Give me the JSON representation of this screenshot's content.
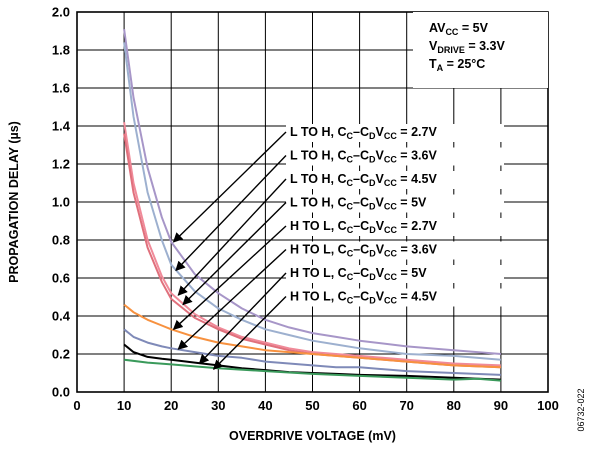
{
  "chart_data": {
    "type": "line",
    "xlabel": "OVERDRIVE VOLTAGE (mV)",
    "ylabel": "PROPAGATION DELAY (µs)",
    "xlim": [
      0,
      100
    ],
    "ylim": [
      0,
      2.0
    ],
    "xticks": [
      0,
      10,
      20,
      30,
      40,
      50,
      60,
      70,
      80,
      90,
      100
    ],
    "yticks": [
      0,
      0.2,
      0.4,
      0.6,
      0.8,
      1.0,
      1.2,
      1.4,
      1.6,
      1.8,
      2.0
    ],
    "grid": true,
    "conditions": [
      "AV_CC = 5V",
      "V_DRIVE = 3.3V",
      "T_A = 25°C"
    ],
    "series": [
      {
        "name": "L TO H, C_C–C_DV_CC = 2.7V",
        "color": "#a796c8",
        "x": [
          10,
          12,
          15,
          18,
          20,
          25,
          30,
          35,
          40,
          45,
          50,
          55,
          60,
          70,
          80,
          90
        ],
        "y": [
          1.91,
          1.55,
          1.18,
          0.92,
          0.79,
          0.62,
          0.52,
          0.44,
          0.38,
          0.34,
          0.31,
          0.29,
          0.27,
          0.24,
          0.22,
          0.2
        ]
      },
      {
        "name": "L TO H, C_C–C_DV_CC = 3.6V",
        "color": "#9db0cf",
        "x": [
          10,
          12,
          15,
          18,
          20,
          25,
          30,
          35,
          40,
          45,
          50,
          55,
          60,
          70,
          80,
          90
        ],
        "y": [
          1.84,
          1.45,
          1.05,
          0.8,
          0.67,
          0.53,
          0.44,
          0.38,
          0.33,
          0.3,
          0.27,
          0.25,
          0.23,
          0.2,
          0.19,
          0.17
        ]
      },
      {
        "name": "L TO H, C_C–C_DV_CC = 4.5V",
        "color": "#f08a99",
        "x": [
          10,
          12,
          15,
          18,
          20,
          25,
          30,
          35,
          40,
          45,
          50,
          55,
          60,
          70,
          80,
          90
        ],
        "y": [
          1.42,
          1.1,
          0.8,
          0.61,
          0.52,
          0.41,
          0.34,
          0.29,
          0.26,
          0.23,
          0.21,
          0.2,
          0.19,
          0.17,
          0.15,
          0.14
        ]
      },
      {
        "name": "L TO H, C_C–C_DV_CC = 5V",
        "color": "#e0707c",
        "x": [
          10,
          12,
          15,
          18,
          20,
          25,
          30,
          35,
          40,
          45,
          50,
          55,
          60,
          70,
          80,
          90
        ],
        "y": [
          1.36,
          1.05,
          0.76,
          0.58,
          0.49,
          0.39,
          0.33,
          0.28,
          0.25,
          0.22,
          0.2,
          0.19,
          0.18,
          0.16,
          0.14,
          0.13
        ]
      },
      {
        "name": "H TO L, C_C–C_DV_CC = 2.7V",
        "color": "#f7913f",
        "x": [
          10,
          12,
          15,
          18,
          20,
          25,
          30,
          35,
          40,
          45,
          50,
          55,
          60,
          70,
          80,
          90
        ],
        "y": [
          0.46,
          0.42,
          0.38,
          0.35,
          0.33,
          0.29,
          0.26,
          0.24,
          0.22,
          0.21,
          0.2,
          0.19,
          0.18,
          0.16,
          0.14,
          0.13
        ]
      },
      {
        "name": "H TO L, C_C–C_DV_CC = 3.6V",
        "color": "#7f8ab8",
        "x": [
          10,
          12,
          15,
          18,
          20,
          25,
          30,
          35,
          40,
          45,
          50,
          55,
          60,
          70,
          80,
          90
        ],
        "y": [
          0.33,
          0.29,
          0.26,
          0.24,
          0.23,
          0.21,
          0.19,
          0.18,
          0.16,
          0.15,
          0.14,
          0.13,
          0.13,
          0.11,
          0.1,
          0.09
        ]
      },
      {
        "name": "H TO L, C_C–C_DV_CC = 5V",
        "color": "#000000",
        "x": [
          10,
          12,
          15,
          18,
          20,
          25,
          30,
          35,
          40,
          45,
          50,
          55,
          60,
          70,
          80,
          90
        ],
        "y": [
          0.25,
          0.21,
          0.185,
          0.175,
          0.17,
          0.155,
          0.14,
          0.125,
          0.115,
          0.105,
          0.1,
          0.095,
          0.09,
          0.085,
          0.075,
          0.065
        ]
      },
      {
        "name": "H TO L, C_C–C_DV_CC = 4.5V",
        "color": "#3a9a5b",
        "x": [
          10,
          15,
          20,
          25,
          30,
          40,
          50,
          60,
          70,
          80,
          85,
          90
        ],
        "y": [
          0.17,
          0.155,
          0.145,
          0.135,
          0.125,
          0.11,
          0.095,
          0.085,
          0.075,
          0.065,
          0.07,
          0.06
        ]
      }
    ],
    "annotations": [
      {
        "prefix": "L TO H, C",
        "s1": "C",
        "mid": "–C",
        "s2": "D",
        "v": "V",
        "s3": "CC",
        "suffix": " = 2.7V",
        "target": [
          20.5,
          0.79
        ]
      },
      {
        "prefix": "L TO H, C",
        "s1": "C",
        "mid": "–C",
        "s2": "D",
        "v": "V",
        "s3": "CC",
        "suffix": " = 3.6V",
        "target": [
          21,
          0.64
        ]
      },
      {
        "prefix": "L TO H, C",
        "s1": "C",
        "mid": "–C",
        "s2": "D",
        "v": "V",
        "s3": "CC",
        "suffix": " = 4.5V",
        "target": [
          21.5,
          0.51
        ]
      },
      {
        "prefix": "L TO H, C",
        "s1": "C",
        "mid": "–C",
        "s2": "D",
        "v": "V",
        "s3": "CC",
        "suffix": " = 5V",
        "target": [
          22.5,
          0.46
        ]
      },
      {
        "prefix": "H TO L, C",
        "s1": "C",
        "mid": "–C",
        "s2": "D",
        "v": "V",
        "s3": "CC",
        "suffix": " = 2.7V",
        "target": [
          20.5,
          0.33
        ]
      },
      {
        "prefix": "H TO L, C",
        "s1": "C",
        "mid": "–C",
        "s2": "D",
        "v": "V",
        "s3": "CC",
        "suffix": " = 3.6V",
        "target": [
          21.5,
          0.225
        ]
      },
      {
        "prefix": "H TO L, C",
        "s1": "C",
        "mid": "–C",
        "s2": "D",
        "v": "V",
        "s3": "CC",
        "suffix": " = 5V",
        "target": [
          26,
          0.15
        ]
      },
      {
        "prefix": "H TO L, C",
        "s1": "C",
        "mid": "–C",
        "s2": "D",
        "v": "V",
        "s3": "CC",
        "suffix": " = 4.5V",
        "target": [
          29,
          0.12
        ]
      }
    ],
    "figure_id": "06732-022"
  }
}
